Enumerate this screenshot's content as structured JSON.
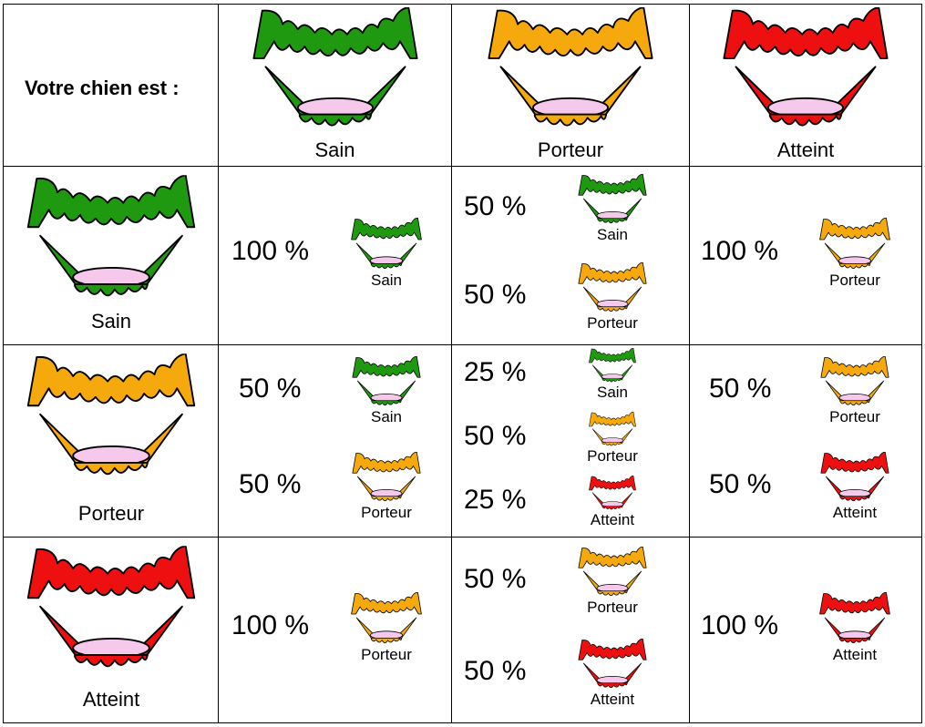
{
  "header": {
    "title": "Votre chien est :"
  },
  "statuses": {
    "sain": {
      "label": "Sain",
      "color": "#1f9a10"
    },
    "porteur": {
      "label": "Porteur",
      "color": "#f5a90c"
    },
    "atteint": {
      "label": "Atteint",
      "color": "#ee1010"
    }
  },
  "gum_color": "#f5c8ec",
  "columns": [
    "Sain",
    "Porteur",
    "Atteint"
  ],
  "rows": [
    {
      "parent": "Sain",
      "cells": [
        [
          {
            "percent": "100 %",
            "label": "Sain"
          }
        ],
        [
          {
            "percent": "50 %",
            "label": "Sain"
          },
          {
            "percent": "50 %",
            "label": "Porteur"
          }
        ],
        [
          {
            "percent": "100 %",
            "label": "Porteur"
          }
        ]
      ]
    },
    {
      "parent": "Porteur",
      "cells": [
        [
          {
            "percent": "50 %",
            "label": "Sain"
          },
          {
            "percent": "50 %",
            "label": "Porteur"
          }
        ],
        [
          {
            "percent": "25 %",
            "label": "Sain"
          },
          {
            "percent": "50 %",
            "label": "Porteur"
          },
          {
            "percent": "25 %",
            "label": "Atteint"
          }
        ],
        [
          {
            "percent": "50 %",
            "label": "Porteur"
          },
          {
            "percent": "50 %",
            "label": "Atteint"
          }
        ]
      ]
    },
    {
      "parent": "Atteint",
      "cells": [
        [
          {
            "percent": "100 %",
            "label": "Porteur"
          }
        ],
        [
          {
            "percent": "50 %",
            "label": "Porteur"
          },
          {
            "percent": "50 %",
            "label": "Atteint"
          }
        ],
        [
          {
            "percent": "100 %",
            "label": "Atteint"
          }
        ]
      ]
    }
  ]
}
